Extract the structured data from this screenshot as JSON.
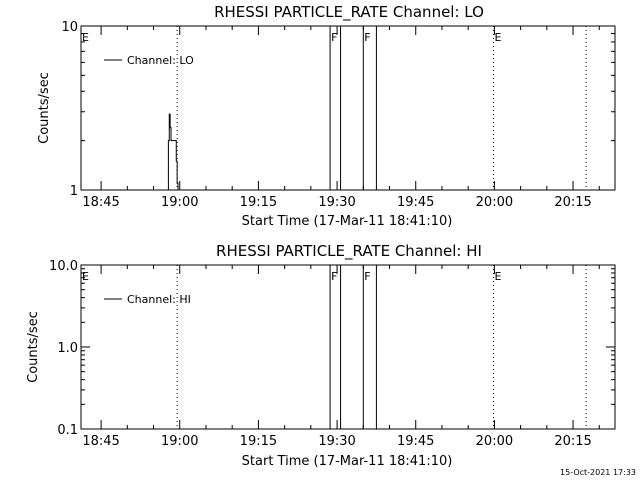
{
  "footer": {
    "timestamp": "15-Oct-2021 17:33"
  },
  "chart_data": [
    {
      "type": "line",
      "title": "RHESSI PARTICLE_RATE Channel: LO",
      "xlabel": "Start Time (17-Mar-11 18:41:10)",
      "ylabel": "Counts/sec",
      "y_scale": "log",
      "xlim": [
        "18:41:10",
        "20:23:00"
      ],
      "ylim": [
        1,
        10
      ],
      "x_tick_labels": [
        "18:45",
        "19:00",
        "19:15",
        "19:30",
        "19:45",
        "20:00",
        "20:15"
      ],
      "y_tick_labels": [
        "1",
        "10"
      ],
      "y_ticks": [
        1,
        10
      ],
      "legend": {
        "label": "Channel: LO",
        "placement": "top-left"
      },
      "series": [
        {
          "name": "Channel: LO",
          "x": [
            "18:57:40",
            "18:57:50",
            "18:58:00",
            "18:58:10",
            "18:58:20",
            "18:58:30",
            "18:58:40",
            "18:58:50",
            "18:59:00",
            "18:59:10",
            "18:59:20",
            "18:59:30",
            "18:59:40"
          ],
          "y": [
            1,
            2.0,
            2.9,
            2.4,
            2.0,
            2.0,
            2.0,
            2.0,
            2.0,
            2.0,
            1.5,
            1.1,
            1
          ]
        }
      ],
      "markers": [
        {
          "label": "E",
          "time": "18:41:10",
          "style": "dotted"
        },
        {
          "label": "",
          "time": "18:59:30",
          "style": "dotted"
        },
        {
          "label": "F",
          "time": "19:28:40",
          "style": "solid"
        },
        {
          "label": "",
          "time": "19:30:40",
          "style": "solid"
        },
        {
          "label": "F",
          "time": "19:35:00",
          "style": "solid"
        },
        {
          "label": "",
          "time": "19:37:30",
          "style": "solid"
        },
        {
          "label": "E",
          "time": "19:59:50",
          "style": "dotted"
        },
        {
          "label": "",
          "time": "20:17:30",
          "style": "dotted"
        }
      ]
    },
    {
      "type": "line",
      "title": "RHESSI PARTICLE_RATE Channel: HI",
      "xlabel": "Start Time (17-Mar-11 18:41:10)",
      "ylabel": "Counts/sec",
      "y_scale": "log",
      "xlim": [
        "18:41:10",
        "20:23:00"
      ],
      "ylim": [
        0.1,
        10
      ],
      "x_tick_labels": [
        "18:45",
        "19:00",
        "19:15",
        "19:30",
        "19:45",
        "20:00",
        "20:15"
      ],
      "y_tick_labels": [
        "0.1",
        "1.0",
        "10.0"
      ],
      "y_ticks": [
        0.1,
        1,
        10
      ],
      "legend": {
        "label": "Channel: HI",
        "placement": "top-left"
      },
      "series": [
        {
          "name": "Channel: HI",
          "x": [],
          "y": []
        }
      ],
      "markers": [
        {
          "label": "E",
          "time": "18:41:10",
          "style": "dotted"
        },
        {
          "label": "",
          "time": "18:59:30",
          "style": "dotted"
        },
        {
          "label": "F",
          "time": "19:28:40",
          "style": "solid"
        },
        {
          "label": "",
          "time": "19:30:40",
          "style": "solid"
        },
        {
          "label": "F",
          "time": "19:35:00",
          "style": "solid"
        },
        {
          "label": "",
          "time": "19:37:30",
          "style": "solid"
        },
        {
          "label": "E",
          "time": "19:59:50",
          "style": "dotted"
        },
        {
          "label": "",
          "time": "20:17:30",
          "style": "dotted"
        }
      ]
    }
  ]
}
